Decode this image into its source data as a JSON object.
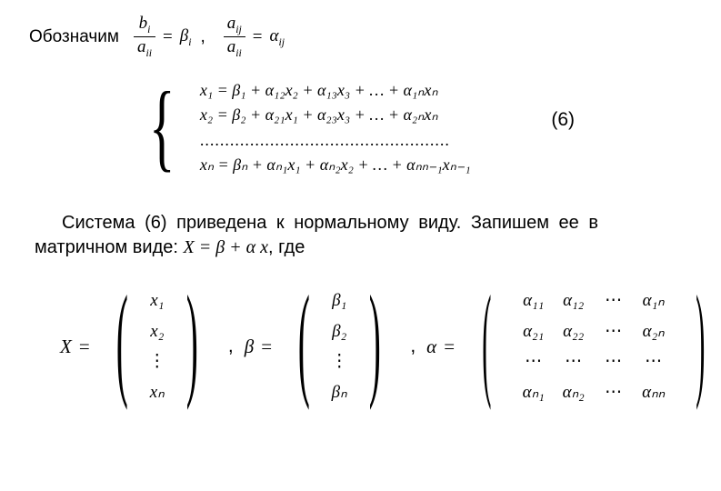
{
  "line1_label": "Обозначим",
  "frac1_num_base": "b",
  "frac1_num_sub": "i",
  "frac1_den_base": "a",
  "frac1_den_sub": "ii",
  "eq": "=",
  "beta": "β",
  "alpha": "α",
  "sub_i": "i",
  "comma": ",",
  "frac2_num_base": "a",
  "frac2_num_sub": "ij",
  "frac2_den_base": "a",
  "frac2_den_sub": "ii",
  "sub_ij": "ij",
  "sys": {
    "l1": "x₁ = β₁ + α₁₂x₂ + α₁₃x₃ + … + α₁ₙxₙ",
    "l2": "x₂ = β₂ + α₂₁x₁ + α₂₃x₃ + … + α₂ₙxₙ",
    "l3": "..................................................",
    "l4": "xₙ = βₙ + αₙ₁x₁ + αₙ₂x₂ + … + αₙₙ₋₁xₙ₋₁"
  },
  "eqnum": "(6)",
  "para_pre": "Система (6) приведена к нормальному виду. Запишем ее в матричном виде:   ",
  "para_eq": "X = β + α x",
  "para_post": ", где",
  "X_label": "X",
  "beta_label": "β",
  "alpha_label": "α",
  "Xvec": {
    "r1": "x₁",
    "r2": "x₂",
    "r3": "⋮",
    "r4": "xₙ"
  },
  "Bvec": {
    "r1": "β₁",
    "r2": "β₂",
    "r3": "⋮",
    "r4": "βₙ"
  },
  "Amat": {
    "r1c1": "α₁₁",
    "r1c2": "α₁₂",
    "r1c3": "⋯",
    "r1c4": "α₁ₙ",
    "r2c1": "α₂₁",
    "r2c2": "α₂₂",
    "r2c3": "⋯",
    "r2c4": "α₂ₙ",
    "r3c1": "⋯",
    "r3c2": "⋯",
    "r3c3": "⋯",
    "r3c4": "⋯",
    "r4c1": "αₙ₁",
    "r4c2": "αₙ₂",
    "r4c3": "⋯",
    "r4c4": "αₙₙ"
  },
  "text_color": "#000000",
  "bg_color": "#ffffff",
  "base_fontsize_pt": 15,
  "math_fontsize_pt": 14
}
